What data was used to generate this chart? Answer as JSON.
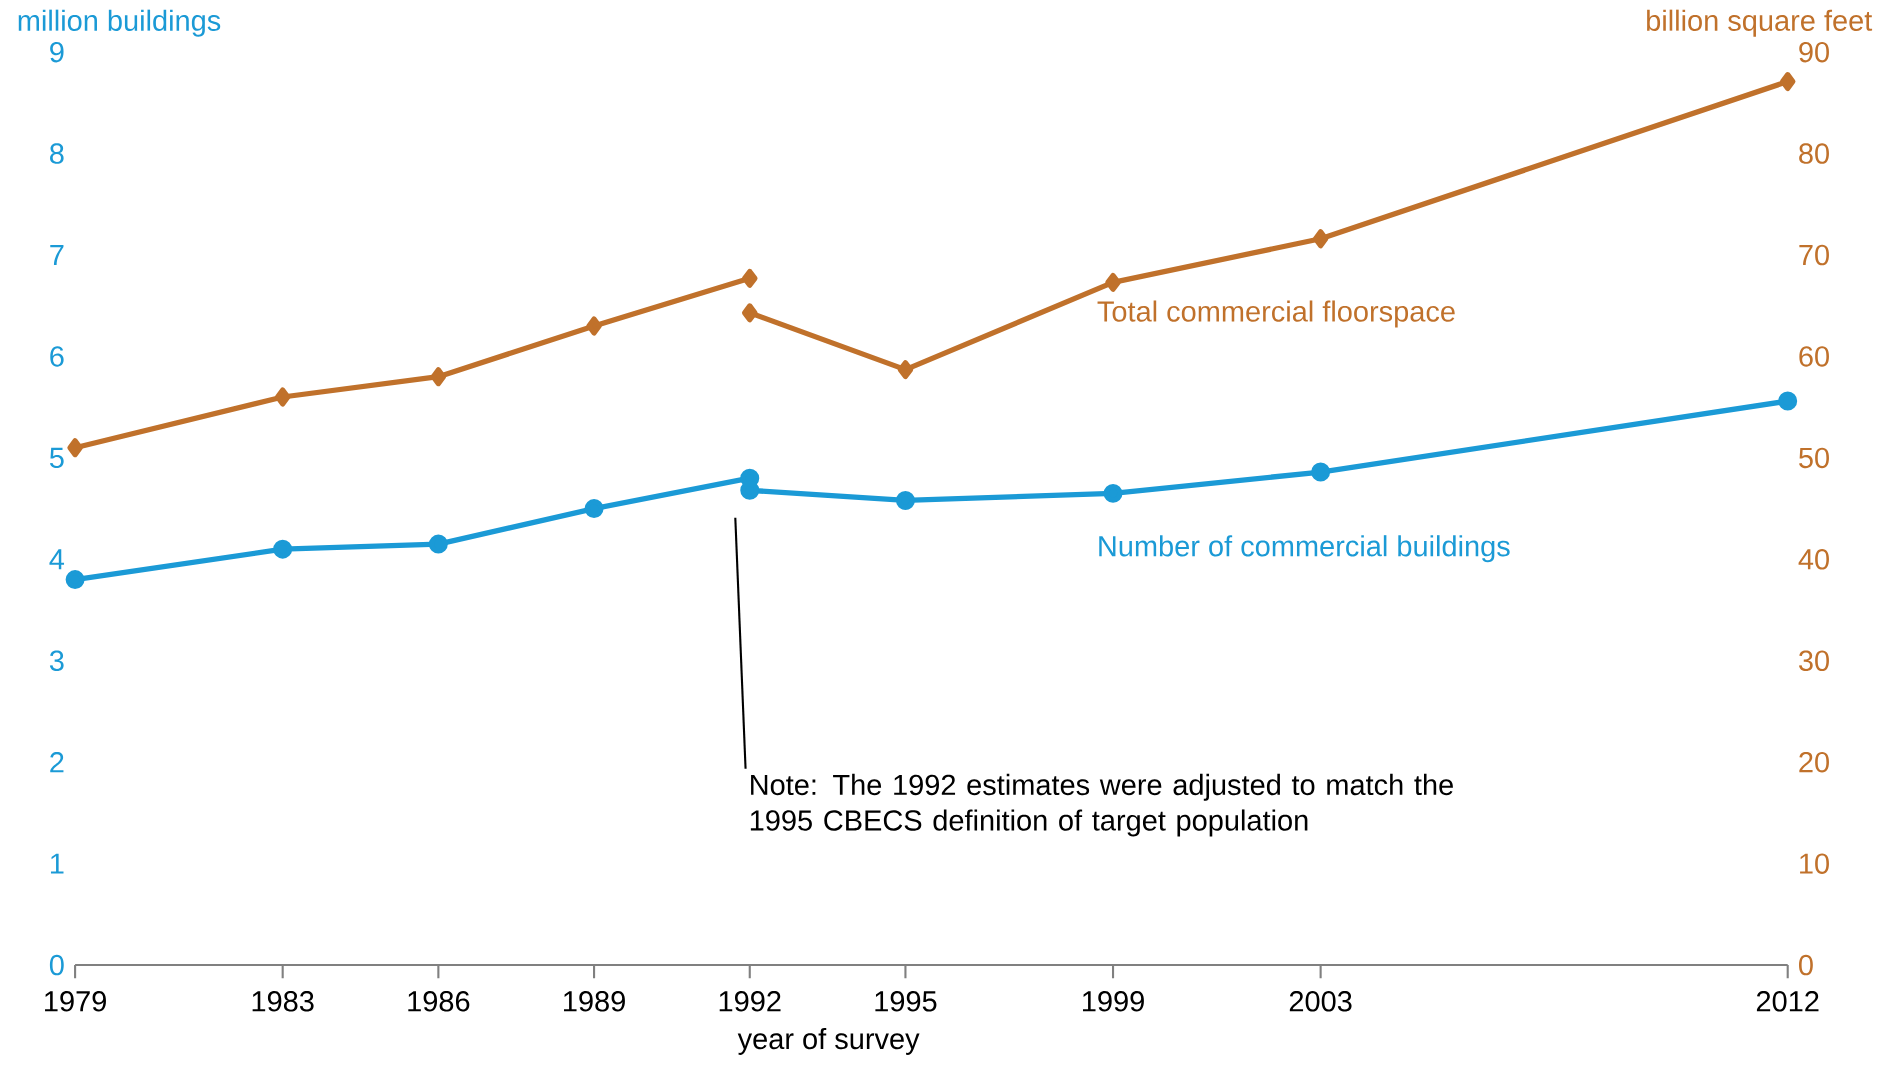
{
  "chart_data": {
    "type": "line",
    "xlabel": "year of survey",
    "ylabel": "million buildings",
    "y2label": "billion square feet",
    "xlim": [
      1979,
      2012
    ],
    "xticks": [
      1979,
      1983,
      1986,
      1989,
      1992,
      1995,
      1999,
      2003,
      2012
    ],
    "ylim": [
      0,
      9
    ],
    "yticks": [
      0,
      1,
      2,
      3,
      4,
      5,
      6,
      7,
      8,
      9
    ],
    "y2lim": [
      0,
      90
    ],
    "y2ticks": [
      0,
      10,
      20,
      30,
      40,
      50,
      60,
      70,
      80,
      90
    ],
    "grid": false,
    "line_style": "solid",
    "series": [
      {
        "color": "#1b9ad6",
        "marker": "circle",
        "x": [
          1979,
          1983,
          1986,
          1989,
          1992
        ],
        "values": [
          3.8,
          4.1,
          4.15,
          4.5,
          4.8
        ]
      },
      {
        "name": "Number of commercial buildings",
        "color": "#1b9ad6",
        "marker": "circle",
        "x": [
          1992,
          1995,
          1999,
          2003,
          2012
        ],
        "values": [
          4.68,
          4.58,
          4.65,
          4.86,
          5.56
        ]
      },
      {
        "color": "#c0712b",
        "marker": "diamond",
        "axis": "y2",
        "x": [
          1979,
          1983,
          1986,
          1989,
          1992
        ],
        "values": [
          51,
          56,
          58,
          63,
          67.7
        ]
      },
      {
        "name": "Total commercial floorspace",
        "color": "#c0712b",
        "marker": "diamond",
        "axis": "y2",
        "x": [
          1992,
          1995,
          1999,
          2003,
          2012
        ],
        "values": [
          64.3,
          58.7,
          67.3,
          71.6,
          87.1
        ]
      }
    ],
    "annotations": [
      "Note: The 1992 estimates were adjusted to match the 1995 CBECS definition of target population"
    ]
  }
}
